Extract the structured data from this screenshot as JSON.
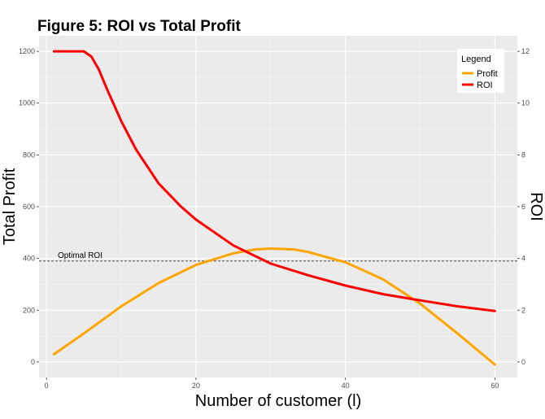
{
  "chart_data": {
    "type": "line",
    "title": "Figure 5: ROI vs Total Profit",
    "xlabel": "Number of customer (l)",
    "ylabel": "Total Profit",
    "y2label": "ROI",
    "xlim": [
      -1,
      63
    ],
    "ylim": [
      -60,
      1260
    ],
    "y2lim": [
      -0.6,
      12.6
    ],
    "x_ticks": [
      0,
      20,
      40,
      60
    ],
    "y_ticks": [
      0,
      200,
      400,
      600,
      800,
      1000,
      1200
    ],
    "y2_ticks": [
      0,
      2,
      4,
      6,
      8,
      10,
      12
    ],
    "grid": true,
    "legend": {
      "title": "Legend",
      "position": "top-right",
      "entries": [
        "Profit",
        "ROI"
      ]
    },
    "series": [
      {
        "name": "Profit",
        "axis": "left",
        "color": "#FFA500",
        "x": [
          1,
          5,
          10,
          15,
          20,
          25,
          28,
          30,
          33,
          35,
          40,
          45,
          50,
          55,
          60
        ],
        "values": [
          30,
          110,
          215,
          305,
          375,
          420,
          435,
          438,
          435,
          425,
          385,
          320,
          225,
          110,
          -10
        ]
      },
      {
        "name": "ROI",
        "axis": "right",
        "color": "#FF0000",
        "x": [
          1,
          3,
          5,
          6,
          7,
          8,
          10,
          12,
          15,
          18,
          20,
          25,
          30,
          35,
          40,
          45,
          50,
          55,
          60
        ],
        "values": [
          12,
          12,
          12,
          11.8,
          11.3,
          10.6,
          9.3,
          8.2,
          6.9,
          6.0,
          5.5,
          4.5,
          3.8,
          3.35,
          2.95,
          2.62,
          2.38,
          2.15,
          1.97
        ]
      }
    ],
    "annotations": [
      {
        "text": "Optimal ROI",
        "y2": 3.9,
        "style": "dashed-horizontal"
      }
    ]
  }
}
